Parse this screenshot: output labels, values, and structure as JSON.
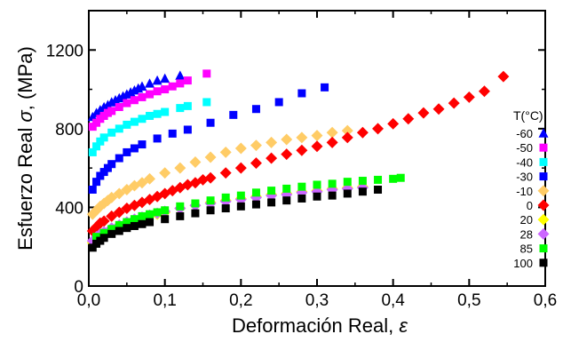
{
  "chart_data": {
    "type": "scatter",
    "xlabel": "Deformación Real,",
    "xlabel_symbol": "ε",
    "ylabel": "Esfuerzo Real",
    "ylabel_symbol": "σ",
    "ylabel_unit": ", (MPa)",
    "xlim": [
      0,
      0.6
    ],
    "ylim": [
      0,
      1400
    ],
    "x_ticks": [
      0,
      0.1,
      0.2,
      0.3,
      0.4,
      0.5,
      0.6
    ],
    "x_tick_labels": [
      "0,0",
      "0,1",
      "0,2",
      "0,3",
      "0,4",
      "0,5",
      "0,6"
    ],
    "y_ticks": [
      0,
      400,
      800,
      1200
    ],
    "y_tick_labels": [
      "0",
      "400",
      "800",
      "1200"
    ],
    "grid": false,
    "legend": {
      "title": "T(°C)",
      "placement": "right"
    },
    "series": [
      {
        "name": "-60",
        "color": "#0000ff",
        "marker": "triangle",
        "x": [
          0.005,
          0.01,
          0.015,
          0.02,
          0.025,
          0.03,
          0.035,
          0.04,
          0.045,
          0.05,
          0.055,
          0.06,
          0.065,
          0.07,
          0.08,
          0.09,
          0.1,
          0.12
        ],
        "y": [
          860,
          880,
          895,
          910,
          920,
          935,
          945,
          955,
          965,
          975,
          985,
          995,
          1005,
          1015,
          1030,
          1045,
          1055,
          1070
        ]
      },
      {
        "name": "-50",
        "color": "#ff00ff",
        "marker": "square",
        "x": [
          0.005,
          0.01,
          0.015,
          0.02,
          0.025,
          0.03,
          0.04,
          0.05,
          0.06,
          0.07,
          0.08,
          0.09,
          0.1,
          0.11,
          0.12,
          0.13,
          0.155
        ],
        "y": [
          810,
          830,
          850,
          865,
          880,
          890,
          910,
          930,
          945,
          960,
          975,
          990,
          1000,
          1015,
          1030,
          1045,
          1080
        ]
      },
      {
        "name": "-40",
        "color": "#00ffff",
        "marker": "square",
        "x": [
          0.005,
          0.01,
          0.015,
          0.02,
          0.03,
          0.04,
          0.05,
          0.06,
          0.07,
          0.08,
          0.09,
          0.1,
          0.12,
          0.13,
          0.155
        ],
        "y": [
          680,
          710,
          735,
          755,
          780,
          800,
          820,
          835,
          850,
          865,
          875,
          885,
          905,
          915,
          935
        ]
      },
      {
        "name": "-30",
        "color": "#0000ff",
        "marker": "square",
        "x": [
          0.005,
          0.01,
          0.015,
          0.02,
          0.025,
          0.03,
          0.04,
          0.05,
          0.06,
          0.07,
          0.09,
          0.11,
          0.13,
          0.16,
          0.19,
          0.22,
          0.25,
          0.28,
          0.31
        ],
        "y": [
          490,
          530,
          560,
          580,
          600,
          620,
          650,
          680,
          700,
          720,
          750,
          775,
          795,
          830,
          870,
          900,
          935,
          980,
          1010
        ]
      },
      {
        "name": "-10",
        "color": "#ffcc66",
        "marker": "diamond",
        "x": [
          0.005,
          0.01,
          0.015,
          0.02,
          0.025,
          0.03,
          0.04,
          0.05,
          0.06,
          0.07,
          0.08,
          0.1,
          0.12,
          0.14,
          0.16,
          0.18,
          0.2,
          0.22,
          0.24,
          0.26,
          0.28,
          0.3,
          0.32,
          0.34
        ],
        "y": [
          365,
          385,
          405,
          420,
          435,
          450,
          470,
          490,
          510,
          525,
          545,
          575,
          600,
          630,
          655,
          680,
          700,
          715,
          730,
          745,
          755,
          765,
          780,
          790
        ]
      },
      {
        "name": "0",
        "color": "#ff0000",
        "marker": "diamond",
        "x": [
          0.005,
          0.01,
          0.015,
          0.02,
          0.03,
          0.04,
          0.05,
          0.06,
          0.07,
          0.08,
          0.09,
          0.1,
          0.11,
          0.12,
          0.13,
          0.14,
          0.15,
          0.16,
          0.18,
          0.2,
          0.22,
          0.24,
          0.26,
          0.28,
          0.3,
          0.32,
          0.34,
          0.36,
          0.38,
          0.4,
          0.42,
          0.44,
          0.46,
          0.48,
          0.5,
          0.52,
          0.545
        ],
        "y": [
          280,
          300,
          320,
          330,
          355,
          375,
          395,
          410,
          425,
          440,
          455,
          470,
          485,
          500,
          515,
          525,
          540,
          550,
          575,
          600,
          625,
          650,
          670,
          690,
          710,
          730,
          755,
          780,
          800,
          825,
          850,
          880,
          900,
          930,
          960,
          990,
          1065
        ]
      },
      {
        "name": "20",
        "color": "#ffff00",
        "marker": "diamond",
        "x": [
          0.005,
          0.01,
          0.015,
          0.02,
          0.03,
          0.04,
          0.05,
          0.06,
          0.07,
          0.08,
          0.09,
          0.1,
          0.12,
          0.14,
          0.16,
          0.18,
          0.2,
          0.22,
          0.24,
          0.26,
          0.28,
          0.3,
          0.32,
          0.34,
          0.36
        ],
        "y": [
          220,
          240,
          255,
          265,
          285,
          305,
          320,
          335,
          345,
          355,
          365,
          375,
          395,
          410,
          425,
          435,
          445,
          455,
          465,
          470,
          480,
          485,
          495,
          500,
          505
        ]
      },
      {
        "name": "28",
        "color": "#cc66ff",
        "marker": "diamond",
        "x": [
          0.005,
          0.01,
          0.015,
          0.02,
          0.03,
          0.04,
          0.05,
          0.06,
          0.07,
          0.08,
          0.09,
          0.1,
          0.12,
          0.14,
          0.16,
          0.18,
          0.2,
          0.22,
          0.24,
          0.26,
          0.28,
          0.3,
          0.32,
          0.34,
          0.36
        ],
        "y": [
          230,
          250,
          265,
          275,
          295,
          310,
          325,
          340,
          350,
          360,
          370,
          380,
          395,
          410,
          420,
          430,
          440,
          450,
          460,
          465,
          475,
          480,
          490,
          495,
          500
        ]
      },
      {
        "name": "85",
        "color": "#00ff00",
        "marker": "square",
        "x": [
          0.01,
          0.02,
          0.03,
          0.04,
          0.05,
          0.06,
          0.07,
          0.08,
          0.09,
          0.1,
          0.12,
          0.14,
          0.16,
          0.18,
          0.2,
          0.22,
          0.24,
          0.26,
          0.28,
          0.3,
          0.32,
          0.34,
          0.36,
          0.38,
          0.4,
          0.41
        ],
        "y": [
          250,
          270,
          290,
          310,
          325,
          340,
          355,
          365,
          375,
          385,
          405,
          420,
          435,
          450,
          460,
          475,
          485,
          495,
          505,
          515,
          520,
          530,
          535,
          540,
          545,
          550
        ]
      },
      {
        "name": "100",
        "color": "#000000",
        "marker": "square",
        "x": [
          0.005,
          0.01,
          0.015,
          0.02,
          0.03,
          0.04,
          0.05,
          0.06,
          0.07,
          0.08,
          0.1,
          0.12,
          0.14,
          0.16,
          0.18,
          0.2,
          0.22,
          0.24,
          0.26,
          0.28,
          0.3,
          0.32,
          0.34,
          0.36,
          0.38
        ],
        "y": [
          195,
          215,
          230,
          245,
          265,
          280,
          295,
          305,
          315,
          325,
          340,
          355,
          370,
          385,
          395,
          405,
          415,
          425,
          435,
          445,
          455,
          460,
          470,
          480,
          490
        ]
      }
    ]
  }
}
